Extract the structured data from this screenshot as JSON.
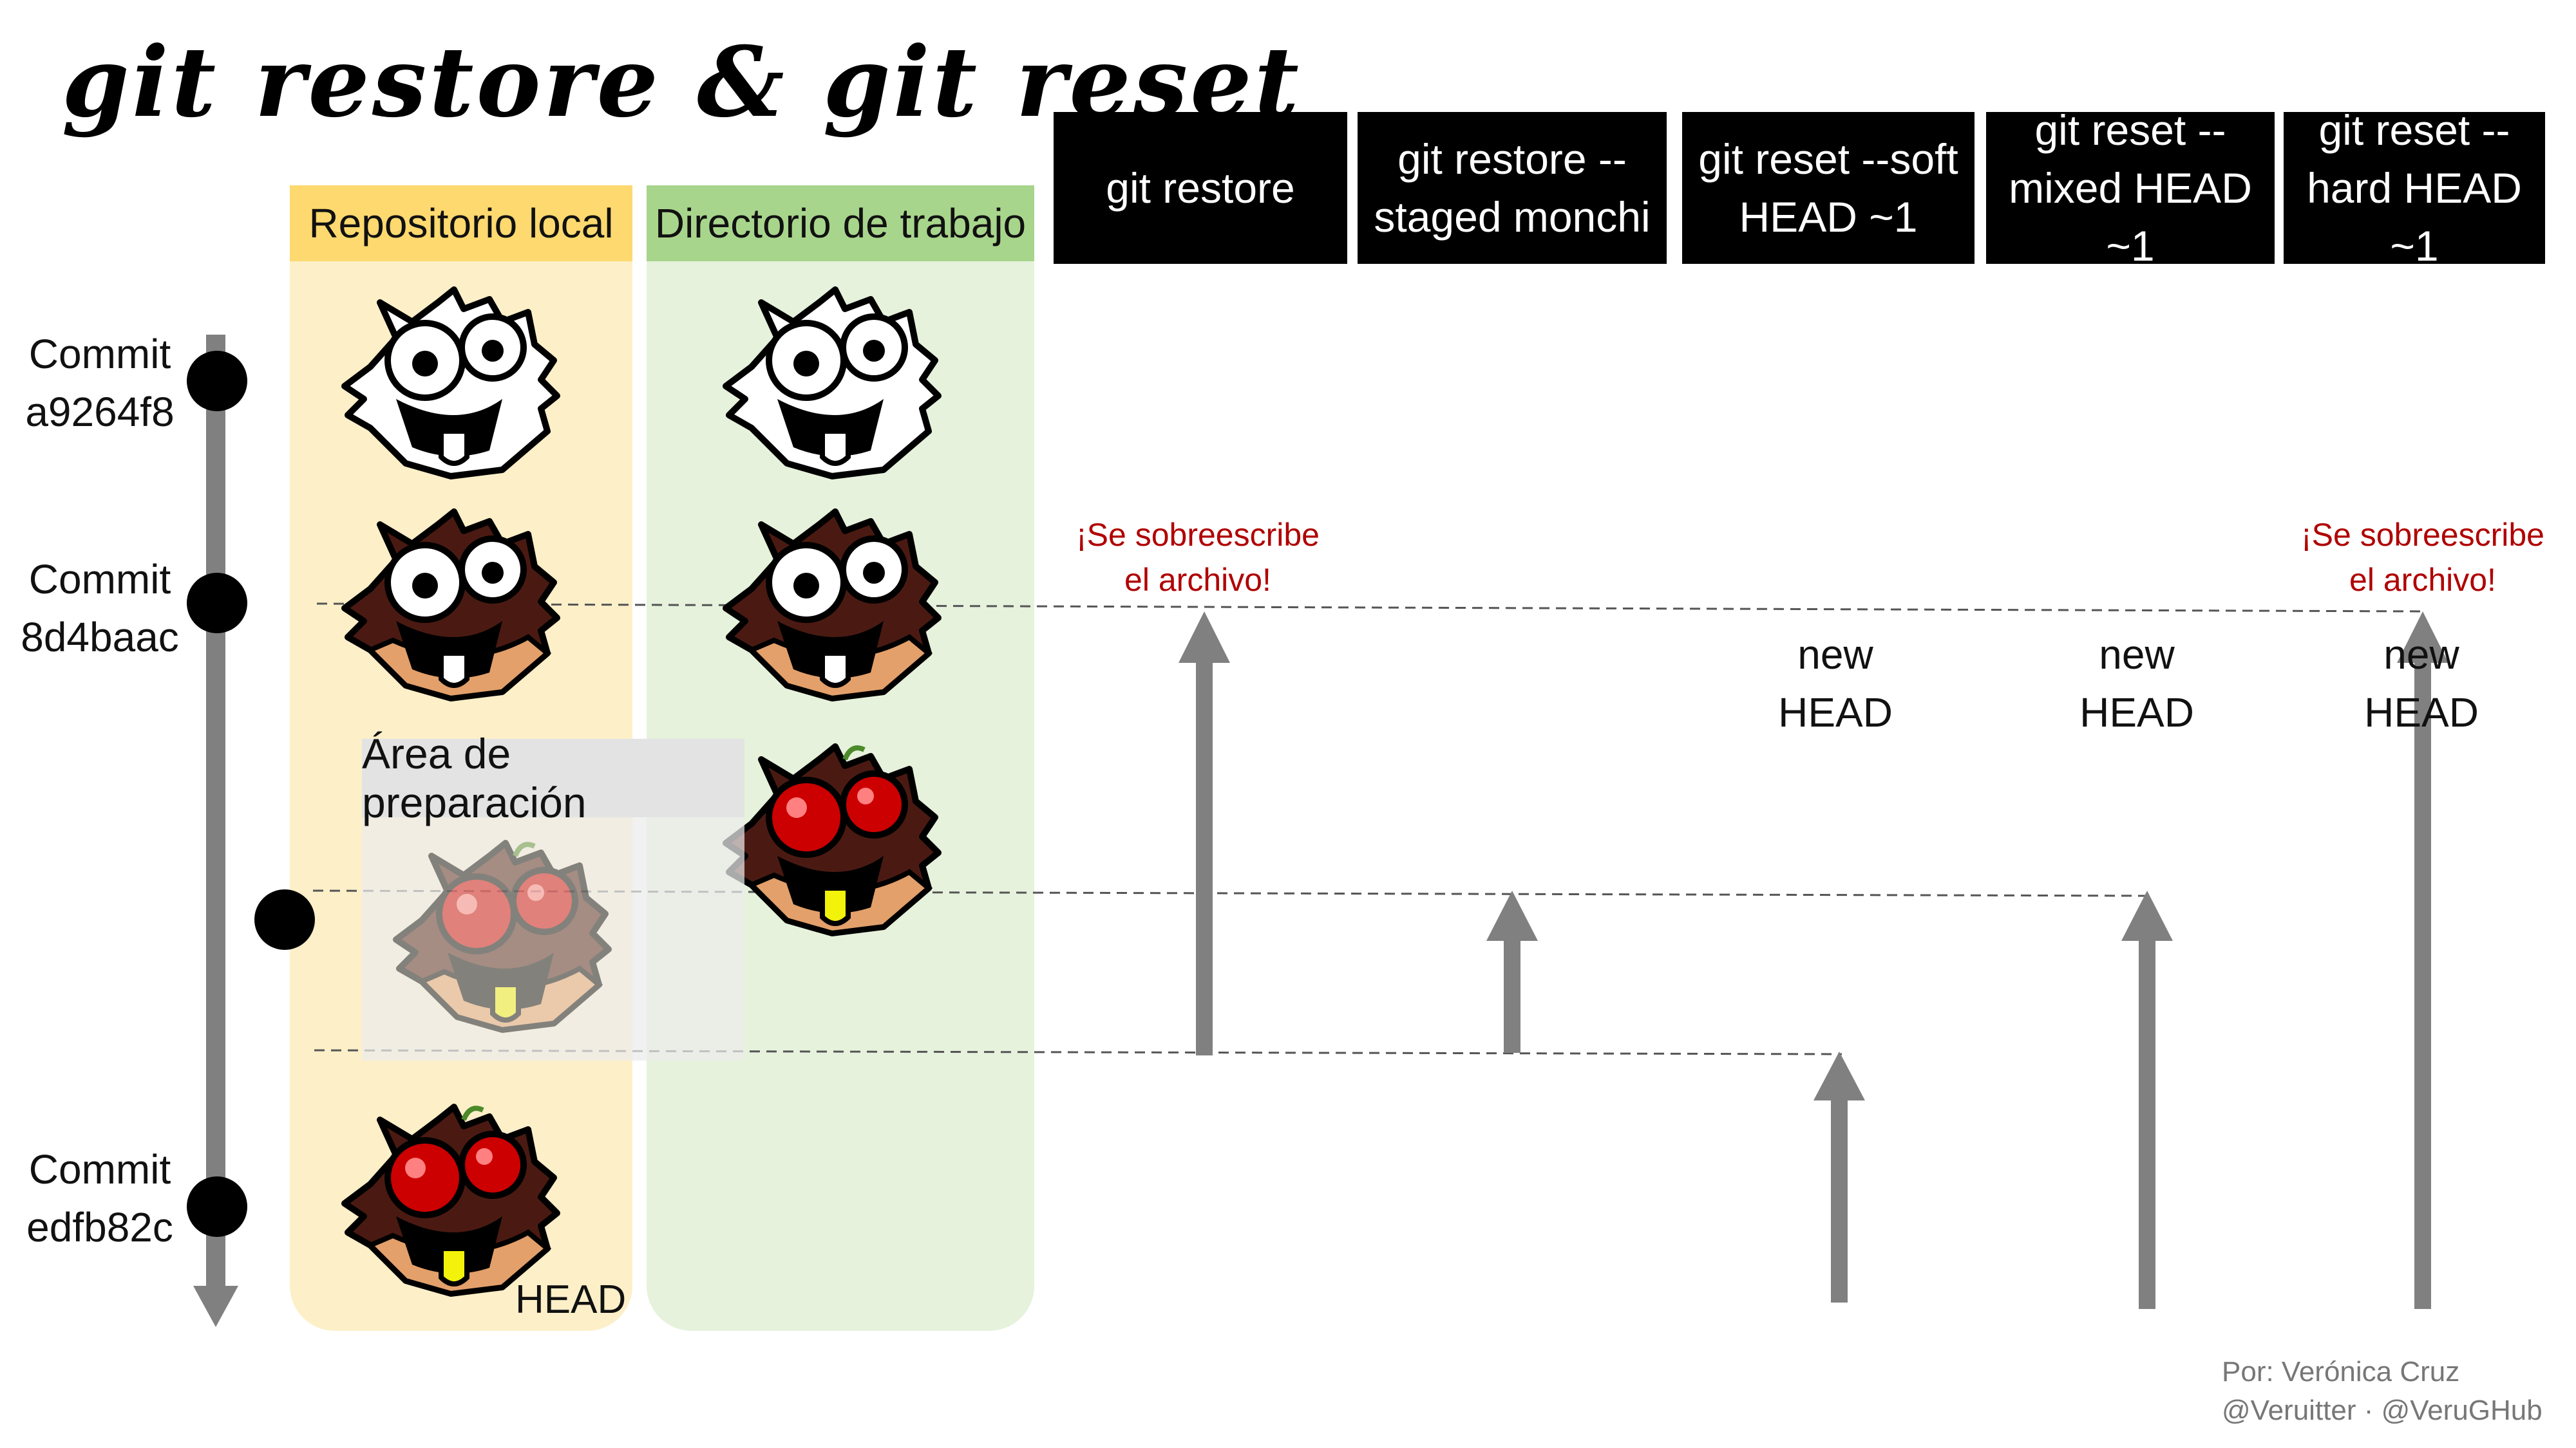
{
  "title": "git restore & git reset",
  "columns": {
    "repo": "Repositorio local",
    "workdir": "Directorio de trabajo",
    "staging": "Área de preparación"
  },
  "commands": [
    "git restore",
    "git restore -- staged monchi",
    "git reset --soft HEAD ~1",
    "git reset -- mixed HEAD ~1",
    "git reset -- hard HEAD ~1"
  ],
  "command_lines": {
    "c0": [
      "git restore"
    ],
    "c1": [
      "git restore --",
      "staged monchi"
    ],
    "c2": [
      "git reset --soft",
      "HEAD ~1"
    ],
    "c3": [
      "git reset --",
      "mixed HEAD ~1"
    ],
    "c4": [
      "git reset --",
      "hard HEAD ~1"
    ]
  },
  "commits": [
    {
      "label": "Commit",
      "hash": "a9264f8"
    },
    {
      "label": "Commit",
      "hash": "8d4baac"
    },
    {
      "label": "Commit",
      "hash": "edfb82c"
    }
  ],
  "warning": {
    "line1": "¡Se sobreescribe",
    "line2": "el archivo!"
  },
  "new_head": {
    "line1": "new",
    "line2": "HEAD"
  },
  "head_label": "HEAD",
  "credit": {
    "line1": "Por: Verónica Cruz",
    "line2": "@Veruitter · @VeruGHub"
  },
  "colors": {
    "repo_bg": "#fdefc8",
    "repo_header": "#fdd96f",
    "workdir_bg": "#e6f2dc",
    "workdir_header": "#a8d58c",
    "arrow": "#808080",
    "warning": "#b00000",
    "command_bg": "#000000"
  },
  "mascots": [
    {
      "name": "white-mascot",
      "style": "white"
    },
    {
      "name": "brown-mascot",
      "style": "brown"
    },
    {
      "name": "red-mascot",
      "style": "red"
    }
  ]
}
